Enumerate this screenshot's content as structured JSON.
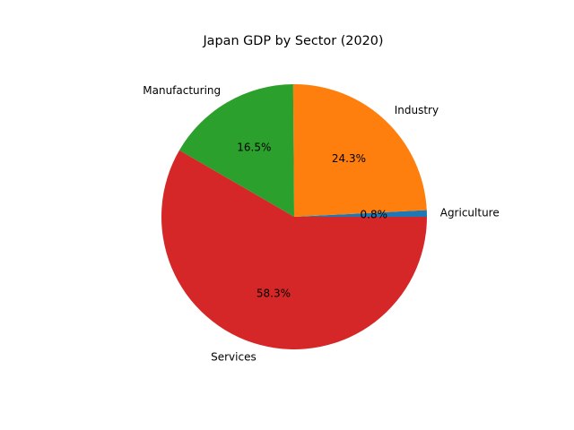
{
  "chart_data": {
    "type": "pie",
    "title": "Japan GDP by Sector (2020)",
    "start_angle_deg": 0,
    "direction": "counterclockwise",
    "slices": [
      {
        "label": "Agriculture",
        "value": 0.8,
        "pct_label": "0.8%",
        "color": "#1f77b4"
      },
      {
        "label": "Industry",
        "value": 24.3,
        "pct_label": "24.3%",
        "color": "#ff7f0e"
      },
      {
        "label": "Manufacturing",
        "value": 16.5,
        "pct_label": "16.5%",
        "color": "#2ca02c"
      },
      {
        "label": "Services",
        "value": 58.3,
        "pct_label": "58.3%",
        "color": "#d62728"
      }
    ]
  }
}
